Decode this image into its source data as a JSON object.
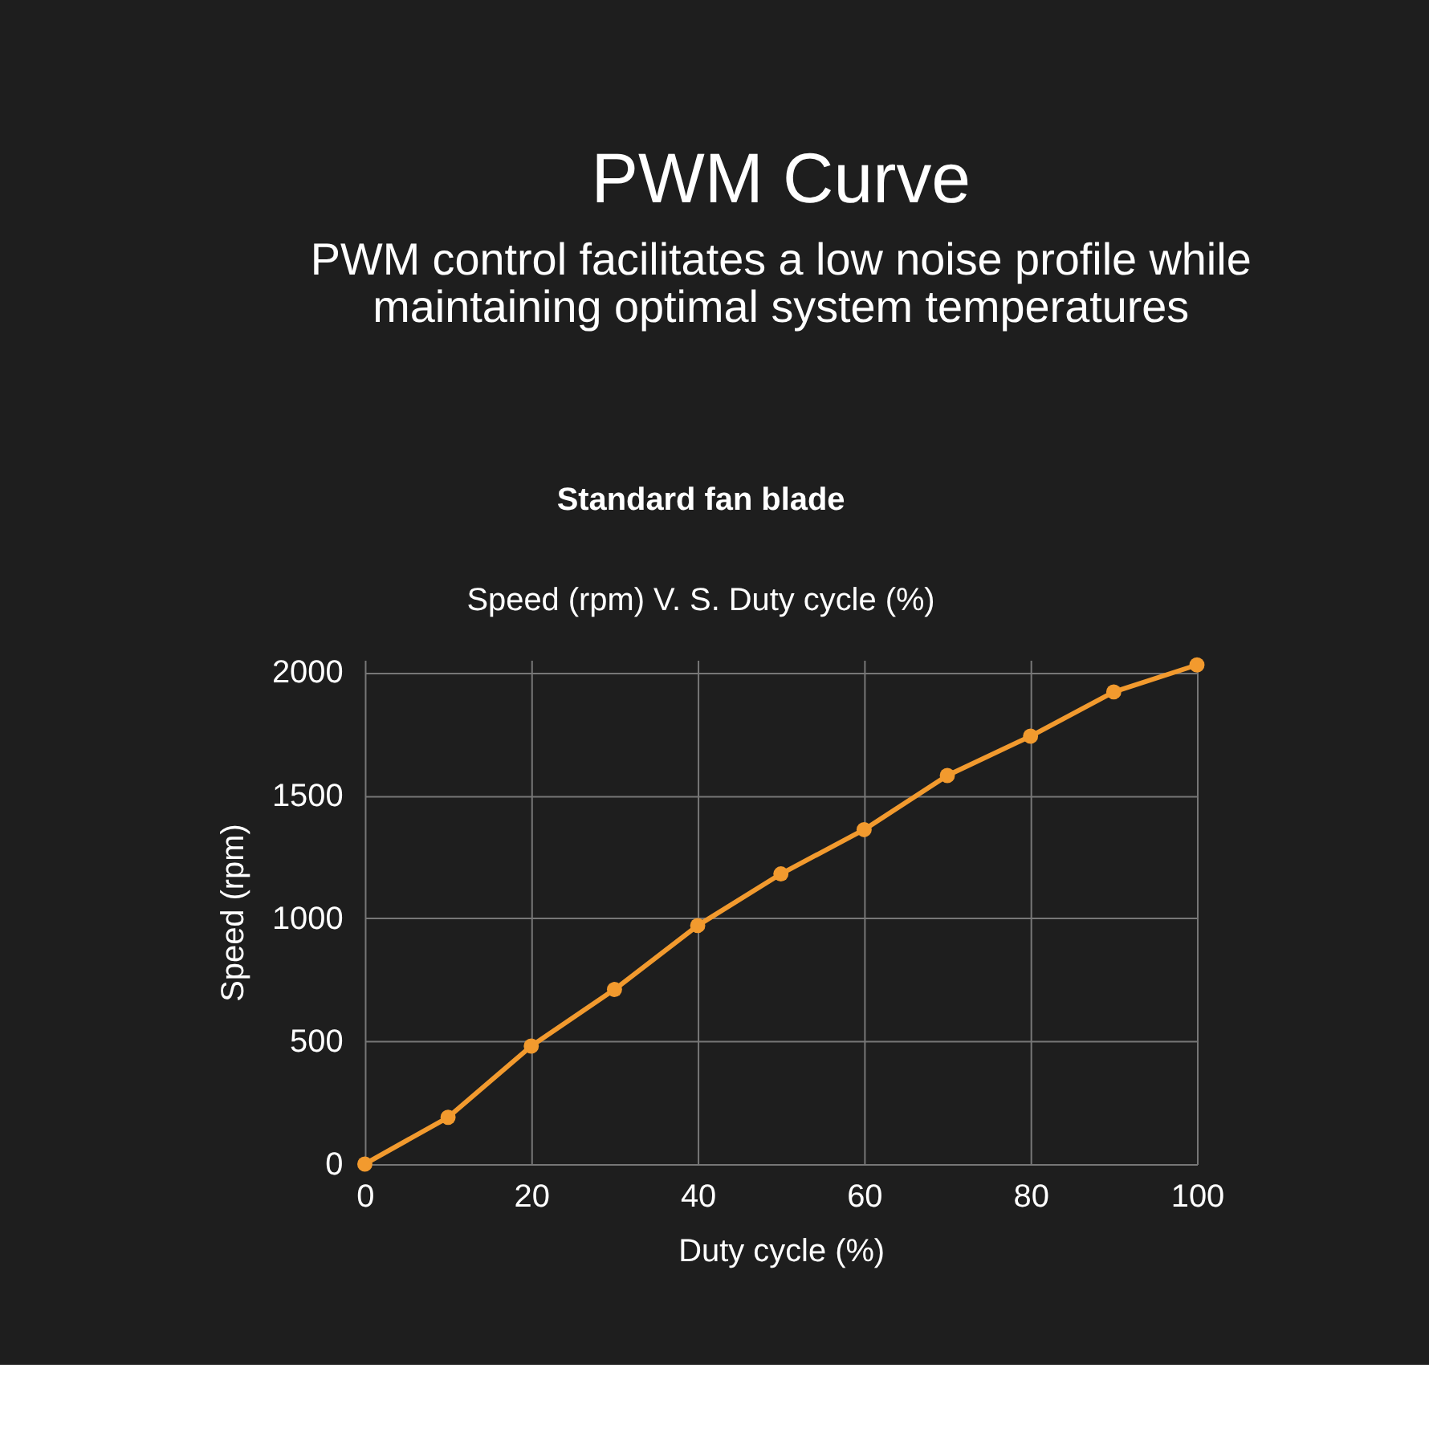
{
  "chart_data": {
    "type": "line",
    "title": "PWM Curve",
    "subtitle": "PWM control facilitates a low noise profile while maintaining optimal system temperatures",
    "annotations": [
      "Standard fan blade",
      "Speed (rpm) V. S. Duty cycle (%)"
    ],
    "xlabel": "Duty cycle (%)",
    "ylabel": "Speed (rpm)",
    "x": [
      0,
      10,
      20,
      30,
      40,
      50,
      60,
      70,
      80,
      90,
      100
    ],
    "series": [
      {
        "color": "#f29a2e",
        "values": [
          0,
          190,
          480,
          710,
          970,
          1180,
          1360,
          1580,
          1740,
          1920,
          2030
        ]
      }
    ],
    "xlim": [
      0,
      100
    ],
    "xticks": [
      0,
      20,
      40,
      60,
      80,
      100
    ],
    "ylim": [
      0,
      2050
    ],
    "yticks": [
      0,
      500,
      1000,
      1500,
      2000
    ],
    "grid": true,
    "marker": "circle",
    "line_style": "solid",
    "legend": false
  }
}
